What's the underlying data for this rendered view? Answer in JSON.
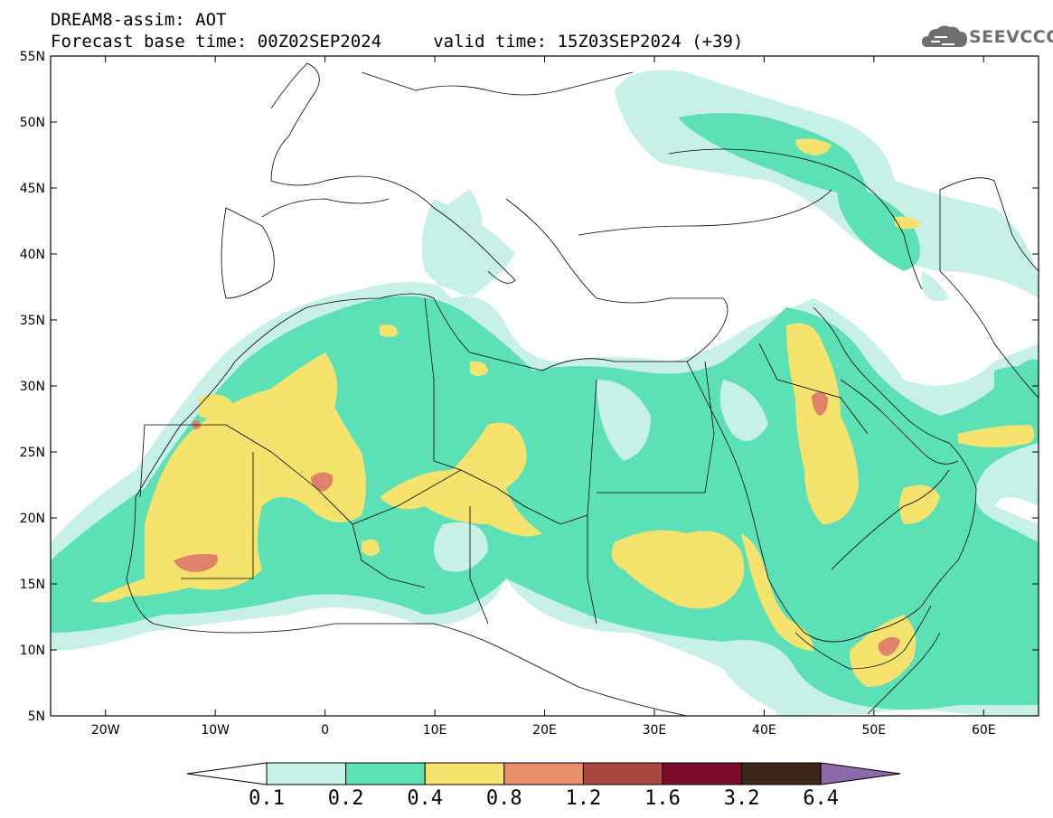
{
  "header": {
    "line1": "DREAM8-assim: AOT",
    "line2": "Forecast base time: 00Z02SEP2024     valid time: 15Z03SEP2024 (+39)"
  },
  "logo": {
    "text": "SEEVCCC",
    "icon": "cloud-logo-icon"
  },
  "map": {
    "extent": {
      "lon_min": -25,
      "lon_max": 65,
      "lat_min": 5,
      "lat_max": 55
    },
    "lat_labels": [
      "55N",
      "50N",
      "45N",
      "40N",
      "35N",
      "30N",
      "25N",
      "20N",
      "15N",
      "10N",
      "5N"
    ],
    "lon_labels": [
      "20W",
      "10W",
      "0",
      "10E",
      "20E",
      "30E",
      "40E",
      "50E",
      "60E"
    ]
  },
  "colorbar": {
    "labels": [
      "0.1",
      "0.2",
      "0.4",
      "0.8",
      "1.2",
      "1.6",
      "3.2",
      "6.4"
    ],
    "colors": [
      "#ffffff",
      "#c7f0e6",
      "#5ce0b6",
      "#f5e36e",
      "#e8906a",
      "#a7473d",
      "#7c0a2c",
      "#3b2418",
      "#8c6aa8"
    ]
  },
  "colors": {
    "c1": "#c7f0e6",
    "c2": "#5ce0b6",
    "c3": "#f5e36e",
    "c4": "#e0826a"
  }
}
